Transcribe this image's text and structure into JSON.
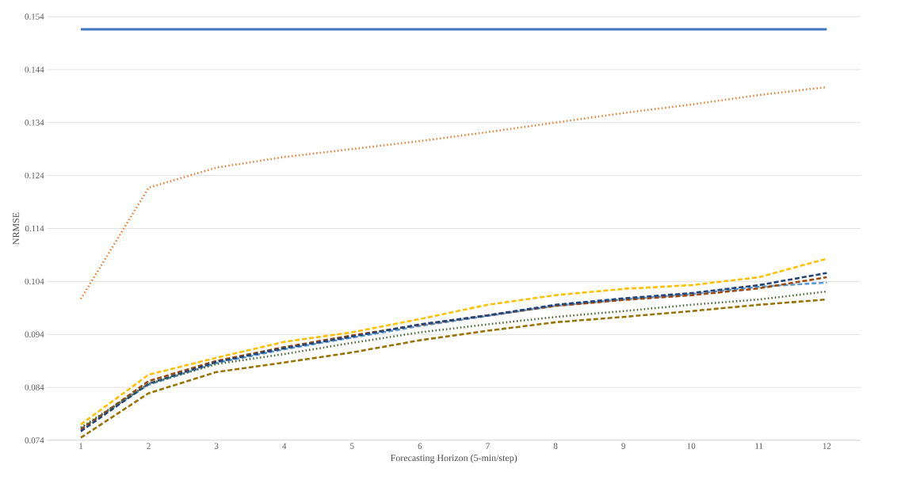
{
  "chart_data": {
    "type": "line",
    "xlabel": "Forecasting Horizon (5-min/step)",
    "ylabel": "NRMSE",
    "categories": [
      "1",
      "2",
      "3",
      "4",
      "5",
      "6",
      "7",
      "8",
      "9",
      "10",
      "11",
      "12"
    ],
    "ylim": [
      0.074,
      0.154
    ],
    "yticks": [
      0.074,
      0.084,
      0.094,
      0.104,
      0.114,
      0.124,
      0.134,
      0.144,
      0.154
    ],
    "grid": "y",
    "marker": "none",
    "series": [
      {
        "color": "#4472c4",
        "line_style": "solid",
        "values": [
          0.1516,
          0.1516,
          0.1516,
          0.1516,
          0.1516,
          0.1516,
          0.1516,
          0.1516,
          0.1516,
          0.1516,
          0.1516,
          0.1516
        ]
      },
      {
        "color": "#ed7d31",
        "line_style": "dotted",
        "values": [
          0.1007,
          0.1217,
          0.1255,
          0.1275,
          0.129,
          0.1305,
          0.1322,
          0.134,
          0.1358,
          0.1374,
          0.1392,
          0.1407
        ]
      },
      {
        "color": "#ffc000",
        "line_style": "dashed",
        "values": [
          0.077,
          0.0864,
          0.0896,
          0.0926,
          0.0944,
          0.0969,
          0.0996,
          0.1014,
          0.1026,
          0.1033,
          0.1048,
          0.1083
        ]
      },
      {
        "color": "#5b9bd5",
        "line_style": "dashed",
        "values": [
          0.0762,
          0.0845,
          0.0886,
          0.0912,
          0.0934,
          0.0956,
          0.0975,
          0.0994,
          0.1006,
          0.1016,
          0.103,
          0.1038
        ]
      },
      {
        "color": "#9e480e",
        "line_style": "dashed",
        "values": [
          0.076,
          0.0852,
          0.089,
          0.0916,
          0.0938,
          0.0958,
          0.0976,
          0.0994,
          0.1005,
          0.1014,
          0.1027,
          0.1048
        ]
      },
      {
        "color": "#264478",
        "line_style": "dashed",
        "values": [
          0.0757,
          0.0847,
          0.0888,
          0.0914,
          0.0936,
          0.0959,
          0.0976,
          0.0996,
          0.1008,
          0.1018,
          0.1033,
          0.1056
        ]
      },
      {
        "color": "#43682b",
        "line_style": "dotted",
        "values": [
          0.0764,
          0.0847,
          0.0884,
          0.0903,
          0.0924,
          0.0944,
          0.0959,
          0.0973,
          0.0984,
          0.0996,
          0.1006,
          0.1021
        ]
      },
      {
        "color": "#997300",
        "line_style": "dashed",
        "values": [
          0.0745,
          0.0829,
          0.0869,
          0.0887,
          0.0906,
          0.0929,
          0.0947,
          0.0963,
          0.0973,
          0.0984,
          0.0996,
          0.1006
        ]
      }
    ]
  }
}
